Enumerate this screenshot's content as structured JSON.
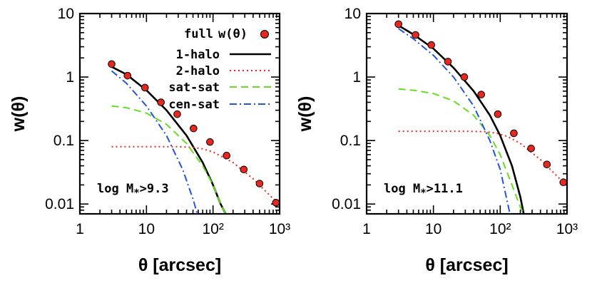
{
  "chart_data": [
    {
      "type": "line",
      "xlabel": "θ [arcsec]",
      "ylabel": "w(θ)",
      "xscale": "log",
      "yscale": "log",
      "xlim": [
        1,
        1000
      ],
      "ylim": [
        0.007,
        10
      ],
      "xticks": [
        "1",
        "10",
        "10²",
        "10³"
      ],
      "yticks": [
        "10",
        "1",
        "0.1",
        "0.01"
      ],
      "annotation": "log M*>9.3",
      "legend": {
        "placement": "top-right",
        "entries": [
          {
            "label": "full",
            "extra": "w(θ)",
            "color": "#e8281e",
            "style": "points"
          },
          {
            "label": "1-halo",
            "color": "#000000",
            "style": "solid"
          },
          {
            "label": "2-halo",
            "color": "#e8281e",
            "style": "dotted"
          },
          {
            "label": "sat-sat",
            "color": "#66dd22",
            "style": "dashed"
          },
          {
            "label": "cen-sat",
            "color": "#2255dd",
            "style": "dashdot"
          }
        ]
      },
      "series": [
        {
          "key": "points",
          "x": [
            3,
            5.2,
            9.5,
            16.5,
            29,
            51,
            90,
            160,
            290,
            500,
            880
          ],
          "y": [
            1.6,
            1.05,
            0.68,
            0.4,
            0.26,
            0.155,
            0.095,
            0.058,
            0.035,
            0.021,
            0.0105
          ]
        },
        {
          "key": "1-halo",
          "x": [
            3,
            5,
            10,
            20,
            40,
            70,
            100,
            130,
            155
          ],
          "y": [
            1.45,
            1.1,
            0.62,
            0.3,
            0.12,
            0.045,
            0.02,
            0.01,
            0.007
          ]
        },
        {
          "key": "2-halo",
          "x": [
            3,
            10,
            30,
            50,
            70,
            100,
            200,
            400,
            880
          ],
          "y": [
            0.08,
            0.08,
            0.08,
            0.078,
            0.074,
            0.066,
            0.045,
            0.025,
            0.011
          ]
        },
        {
          "key": "sat-sat",
          "x": [
            3,
            5,
            10,
            20,
            40,
            70,
            100,
            130,
            155
          ],
          "y": [
            0.35,
            0.33,
            0.27,
            0.18,
            0.09,
            0.04,
            0.02,
            0.01,
            0.007
          ]
        },
        {
          "key": "cen-sat",
          "x": [
            3,
            5,
            10,
            20,
            35,
            50,
            58
          ],
          "y": [
            1.25,
            0.8,
            0.35,
            0.12,
            0.035,
            0.012,
            0.007
          ]
        }
      ]
    },
    {
      "type": "line",
      "xlabel": "θ [arcsec]",
      "ylabel": "w(θ)",
      "xscale": "log",
      "yscale": "log",
      "xlim": [
        1,
        1000
      ],
      "ylim": [
        0.007,
        10
      ],
      "xticks": [
        "1",
        "10",
        "10²",
        "10³"
      ],
      "yticks": [
        "10",
        "1",
        "0.1",
        "0.01"
      ],
      "annotation": "log M*>11.1",
      "series": [
        {
          "key": "points",
          "x": [
            3,
            5.4,
            9.3,
            16.5,
            29,
            52,
            92,
            160,
            290,
            500,
            880
          ],
          "y": [
            6.8,
            4.6,
            3.2,
            1.75,
            1.0,
            0.53,
            0.26,
            0.13,
            0.075,
            0.042,
            0.022
          ]
        },
        {
          "key": "1-halo",
          "x": [
            3,
            5,
            10,
            20,
            40,
            70,
            100,
            150,
            200,
            225
          ],
          "y": [
            6.5,
            4.7,
            2.8,
            1.4,
            0.6,
            0.25,
            0.12,
            0.04,
            0.013,
            0.007
          ]
        },
        {
          "key": "2-halo",
          "x": [
            3,
            10,
            30,
            60,
            90,
            130,
            200,
            400,
            880
          ],
          "y": [
            0.14,
            0.14,
            0.14,
            0.138,
            0.13,
            0.115,
            0.09,
            0.05,
            0.022
          ]
        },
        {
          "key": "sat-sat",
          "x": [
            3,
            5,
            10,
            20,
            40,
            70,
            100,
            150,
            200,
            225
          ],
          "y": [
            0.65,
            0.62,
            0.55,
            0.42,
            0.25,
            0.12,
            0.06,
            0.02,
            0.009,
            0.007
          ]
        },
        {
          "key": "cen-sat",
          "x": [
            3,
            5,
            10,
            20,
            40,
            70,
            100,
            125,
            140
          ],
          "y": [
            5.8,
            4.0,
            2.2,
            1.0,
            0.35,
            0.1,
            0.035,
            0.012,
            0.007
          ]
        }
      ]
    }
  ]
}
